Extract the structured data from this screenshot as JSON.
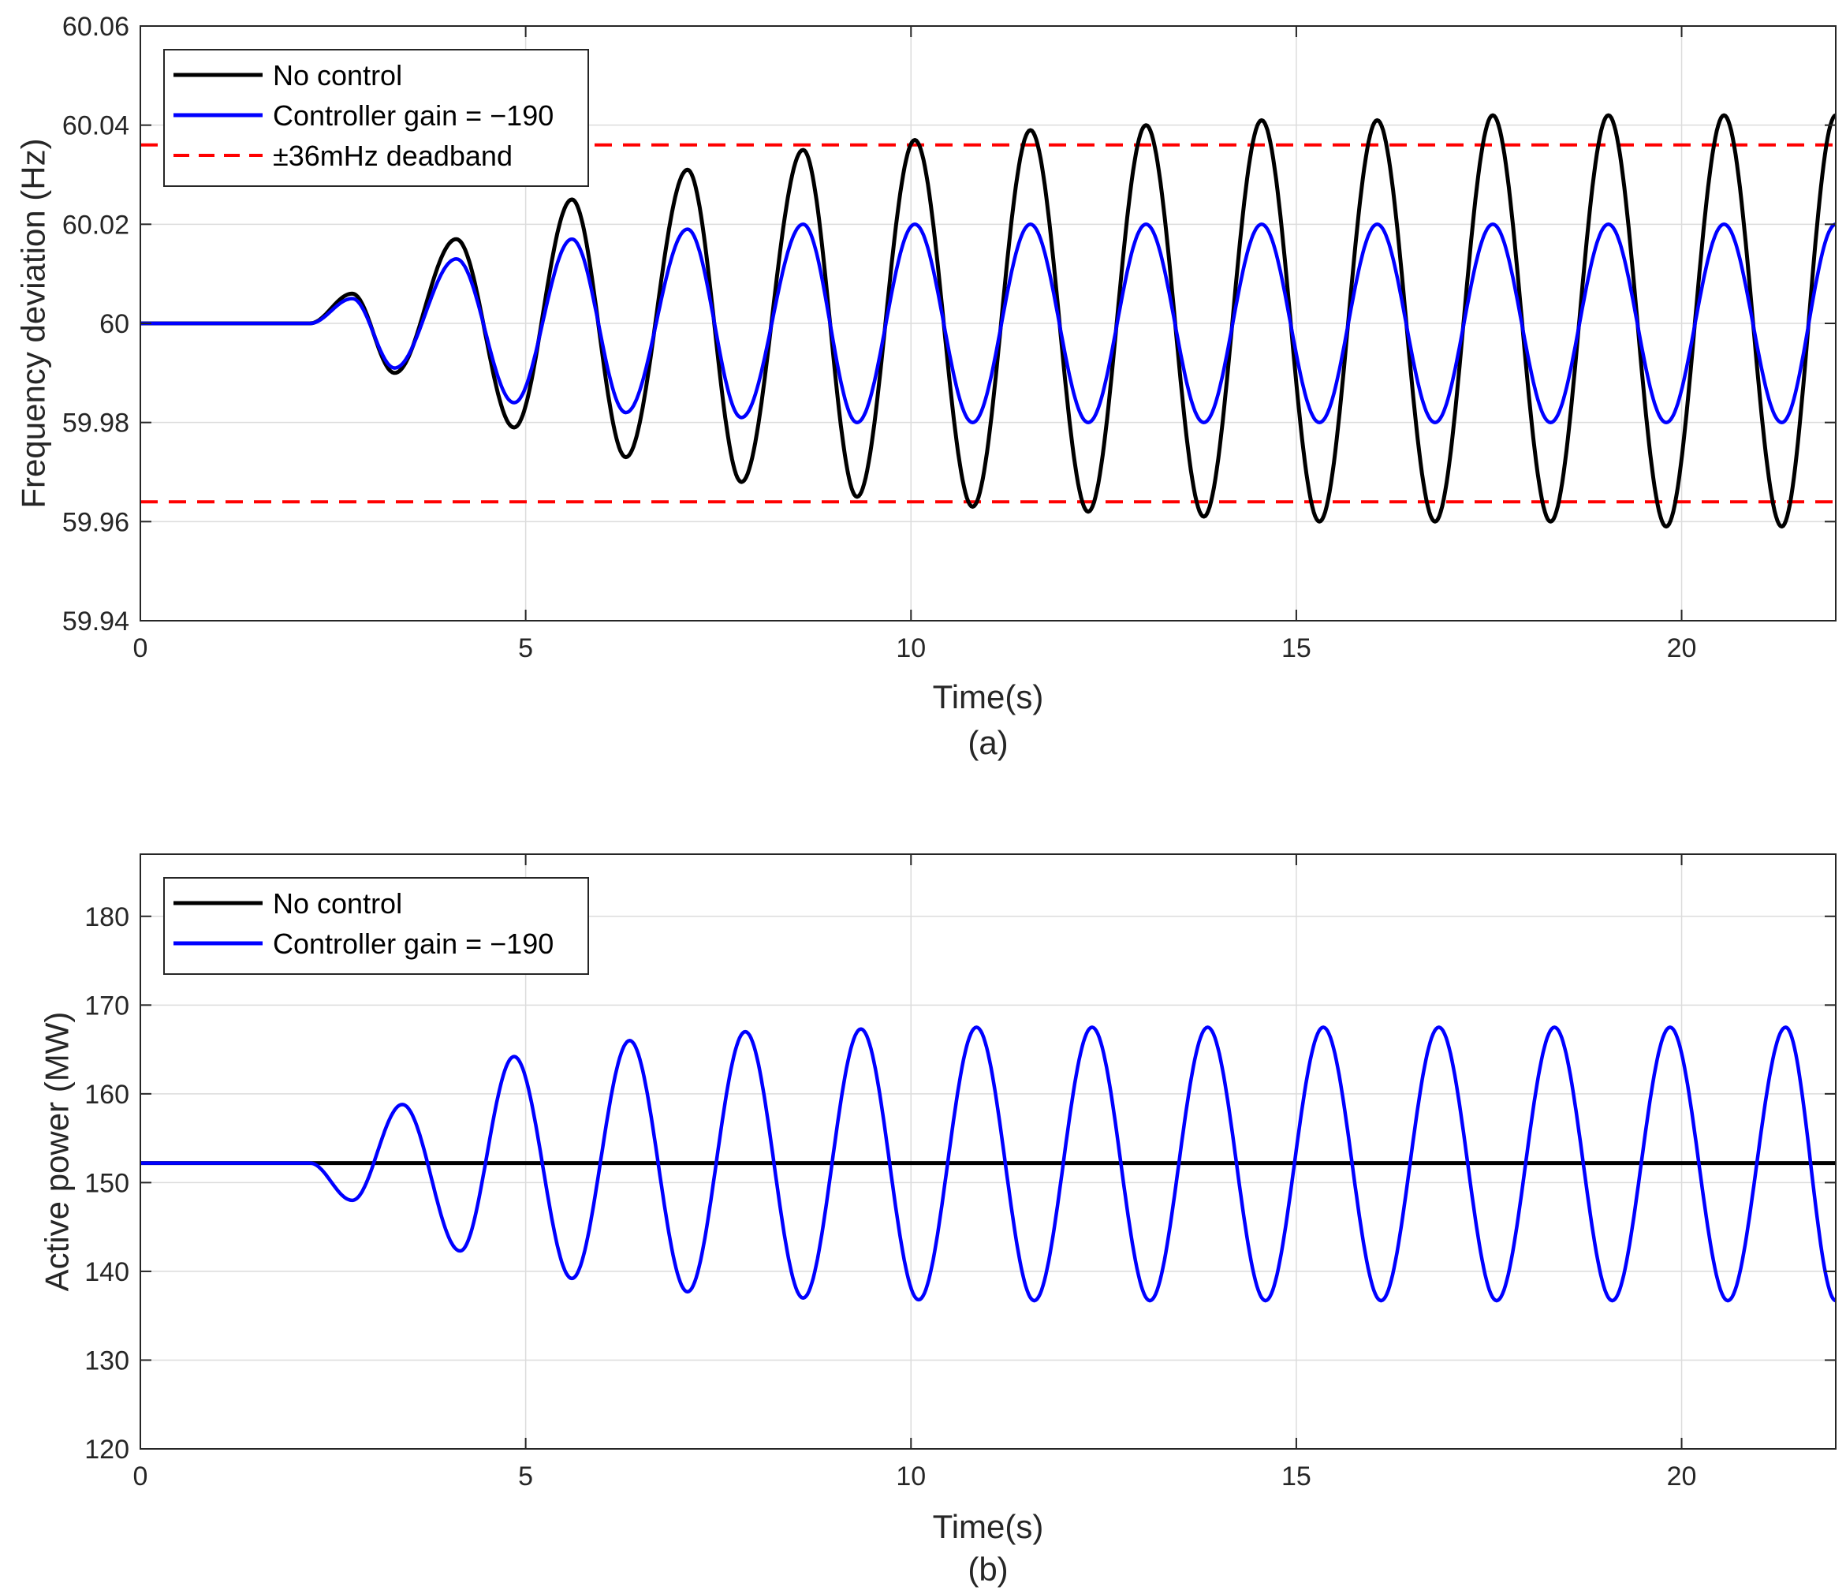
{
  "colors": {
    "no_control": "#000000",
    "controller": "#0000ff",
    "deadband": "#ff0000",
    "grid": "#dcdcdc",
    "axis": "#262626"
  },
  "chart_data": [
    {
      "type": "line",
      "caption": "(a)",
      "xlabel": "Time(s)",
      "ylabel": "Frequency deviation (Hz)",
      "xlim": [
        0,
        22
      ],
      "ylim": [
        59.94,
        60.06
      ],
      "xticks": [
        0,
        5,
        10,
        15,
        20
      ],
      "xtick_labels": [
        "0",
        "5",
        "10",
        "15",
        "20"
      ],
      "yticks": [
        59.94,
        59.96,
        59.98,
        60,
        60.02,
        60.04,
        60.06
      ],
      "ytick_labels": [
        "59.94",
        "59.96",
        "59.98",
        "60",
        "60.02",
        "60.04",
        "60.06"
      ],
      "grid": true,
      "legend_position": "top-left",
      "series": [
        {
          "name": "No control",
          "color": "#000000",
          "style": "solid",
          "x": [
            0,
            2.2,
            2.75,
            3.3,
            4.1,
            4.85,
            5.6,
            6.3,
            7.1,
            7.8,
            8.6,
            9.3,
            10.05,
            10.8,
            11.55,
            12.3,
            13.05,
            13.8,
            14.55,
            15.3,
            16.05,
            16.8,
            17.55,
            18.3,
            19.05,
            19.8,
            20.55,
            21.3,
            22
          ],
          "y": [
            60,
            60,
            60.006,
            59.99,
            60.017,
            59.979,
            60.025,
            59.973,
            60.031,
            59.968,
            60.035,
            59.965,
            60.037,
            59.963,
            60.039,
            59.962,
            60.04,
            59.961,
            60.041,
            59.96,
            60.041,
            59.96,
            60.042,
            59.96,
            60.042,
            59.959,
            60.042,
            59.959,
            60.042
          ]
        },
        {
          "name": "Controller gain = −190",
          "color": "#0000ff",
          "style": "solid",
          "x": [
            0,
            2.2,
            2.75,
            3.3,
            4.1,
            4.85,
            5.6,
            6.3,
            7.1,
            7.8,
            8.6,
            9.3,
            10.05,
            10.8,
            11.55,
            12.3,
            13.05,
            13.8,
            14.55,
            15.3,
            16.05,
            16.8,
            17.55,
            18.3,
            19.05,
            19.8,
            20.55,
            21.3,
            22
          ],
          "y": [
            60,
            60,
            60.005,
            59.991,
            60.013,
            59.984,
            60.017,
            59.982,
            60.019,
            59.981,
            60.02,
            59.98,
            60.02,
            59.98,
            60.02,
            59.98,
            60.02,
            59.98,
            60.02,
            59.98,
            60.02,
            59.98,
            60.02,
            59.98,
            60.02,
            59.98,
            60.02,
            59.98,
            60.02
          ]
        },
        {
          "name": "±36mHz deadband",
          "color": "#ff0000",
          "style": "dashed",
          "levels": [
            60.036,
            59.964
          ]
        }
      ]
    },
    {
      "type": "line",
      "caption": "(b)",
      "xlabel": "Time(s)",
      "ylabel": "Active power (MW)",
      "xlim": [
        0,
        22
      ],
      "ylim": [
        120,
        187
      ],
      "xticks": [
        0,
        5,
        10,
        15,
        20
      ],
      "xtick_labels": [
        "0",
        "5",
        "10",
        "15",
        "20"
      ],
      "yticks": [
        120,
        130,
        140,
        150,
        160,
        170,
        180
      ],
      "ytick_labels": [
        "120",
        "130",
        "140",
        "150",
        "160",
        "170",
        "180"
      ],
      "grid": true,
      "legend_position": "top-left",
      "series": [
        {
          "name": "No control",
          "color": "#000000",
          "style": "solid",
          "x": [
            0,
            22
          ],
          "y": [
            152.2,
            152.2
          ]
        },
        {
          "name": "Controller gain = −190",
          "color": "#0000ff",
          "style": "solid",
          "x": [
            0,
            2.2,
            2.75,
            3.4,
            4.15,
            4.85,
            5.6,
            6.35,
            7.1,
            7.85,
            8.6,
            9.35,
            10.1,
            10.85,
            11.6,
            12.35,
            13.1,
            13.85,
            14.6,
            15.35,
            16.1,
            16.85,
            17.6,
            18.35,
            19.1,
            19.85,
            20.6,
            21.35,
            22
          ],
          "y": [
            152.2,
            152.2,
            148,
            158.8,
            142.3,
            164.2,
            139.2,
            166,
            137.7,
            167,
            137,
            167.3,
            136.8,
            167.5,
            136.7,
            167.5,
            136.7,
            167.5,
            136.7,
            167.5,
            136.7,
            167.5,
            136.7,
            167.5,
            136.7,
            167.5,
            136.7,
            167.5,
            136.7
          ]
        }
      ]
    }
  ]
}
